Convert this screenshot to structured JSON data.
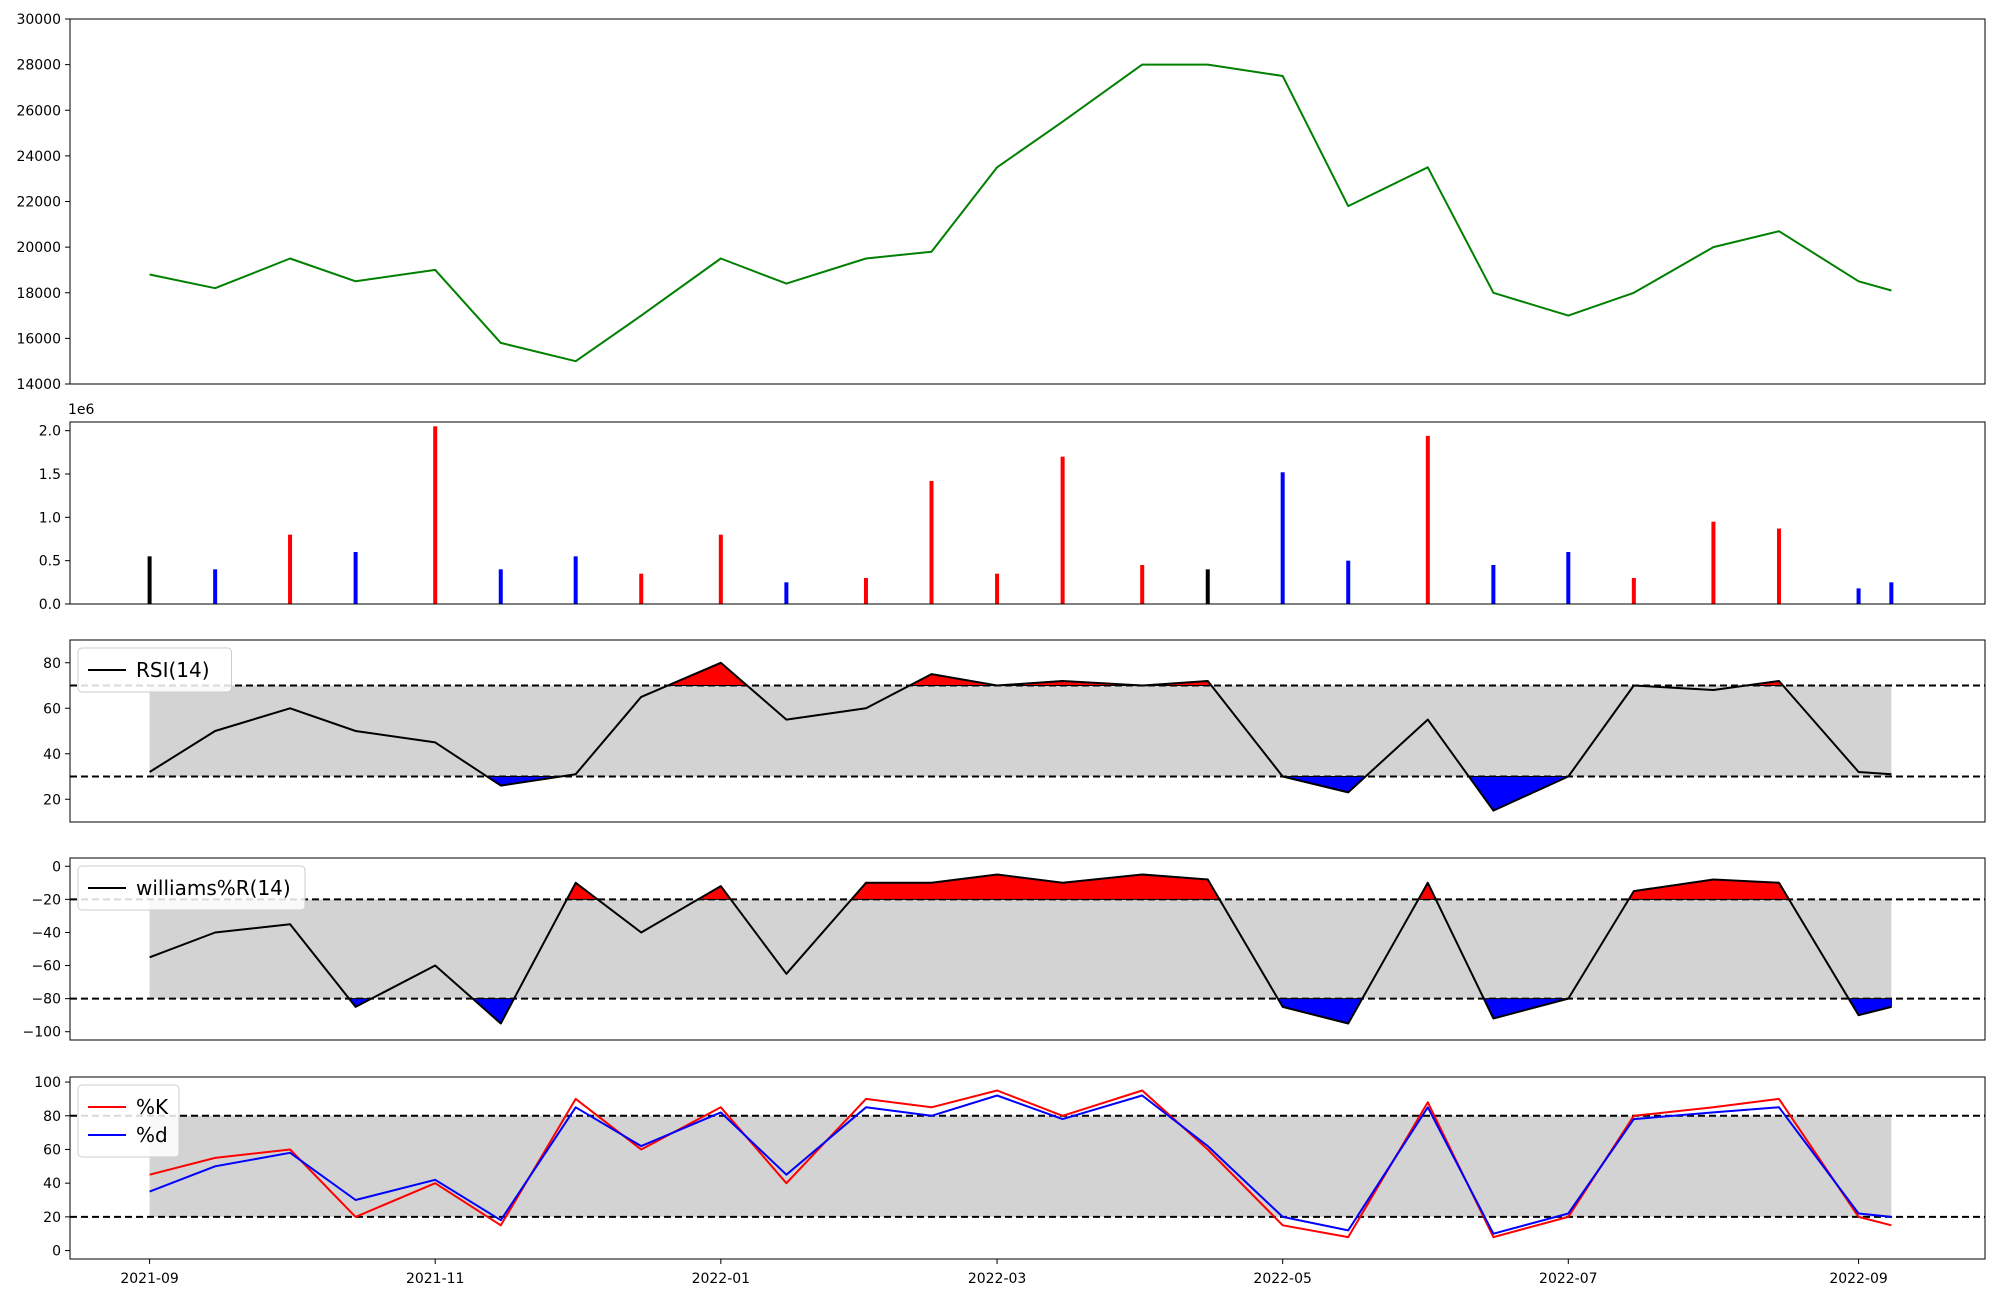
{
  "chart_data": [
    {
      "panel": "price",
      "type": "line",
      "ylim": [
        14000,
        30000
      ],
      "yticks": [
        14000,
        16000,
        18000,
        20000,
        22000,
        24000,
        26000,
        28000,
        30000
      ],
      "ytick_labels": [
        "14000",
        "16000",
        "18000",
        "20000",
        "22000",
        "24000",
        "26000",
        "28000",
        "30000"
      ],
      "color": "#008000",
      "x": [
        "2021-09-01",
        "2021-09-15",
        "2021-10-01",
        "2021-10-15",
        "2021-11-01",
        "2021-11-15",
        "2021-12-01",
        "2021-12-15",
        "2022-01-01",
        "2022-01-15",
        "2022-02-01",
        "2022-02-15",
        "2022-03-01",
        "2022-03-15",
        "2022-04-01",
        "2022-04-15",
        "2022-05-01",
        "2022-05-15",
        "2022-06-01",
        "2022-06-15",
        "2022-07-01",
        "2022-07-15",
        "2022-08-01",
        "2022-08-15",
        "2022-09-01",
        "2022-09-08"
      ],
      "values": [
        18800,
        18200,
        19500,
        18500,
        19000,
        15800,
        15000,
        17000,
        19500,
        18400,
        19500,
        19800,
        23500,
        25500,
        28000,
        28000,
        27500,
        21800,
        23500,
        18000,
        17000,
        18000,
        20000,
        20700,
        18500,
        18100
      ]
    },
    {
      "panel": "volume",
      "type": "bar",
      "scale_label": "1e6",
      "ylim": [
        0,
        2100000
      ],
      "yticks": [
        0,
        500000,
        1000000,
        1500000,
        2000000
      ],
      "ytick_labels": [
        "0.0",
        "0.5",
        "1.0",
        "1.5",
        "2.0"
      ],
      "up_color": "#ff0000",
      "down_color": "#0000ff",
      "flat_color": "#000000",
      "x": [
        "2021-09-01",
        "2021-09-15",
        "2021-10-01",
        "2021-10-15",
        "2021-11-01",
        "2021-11-15",
        "2021-12-01",
        "2021-12-15",
        "2022-01-01",
        "2022-01-15",
        "2022-02-01",
        "2022-02-15",
        "2022-03-01",
        "2022-03-15",
        "2022-04-01",
        "2022-04-15",
        "2022-05-01",
        "2022-05-15",
        "2022-06-01",
        "2022-06-15",
        "2022-07-01",
        "2022-07-15",
        "2022-08-01",
        "2022-08-15",
        "2022-09-01",
        "2022-09-08"
      ],
      "values": [
        550000,
        400000,
        800000,
        600000,
        2050000,
        400000,
        550000,
        350000,
        800000,
        250000,
        300000,
        1420000,
        350000,
        1700000,
        450000,
        400000,
        1520000,
        500000,
        1940000,
        450000,
        600000,
        300000,
        950000,
        870000,
        180000,
        250000
      ]
    },
    {
      "panel": "rsi",
      "type": "line",
      "legend": "RSI(14)",
      "ylim": [
        10,
        90
      ],
      "yticks": [
        20,
        40,
        60,
        80
      ],
      "ytick_labels": [
        "20",
        "40",
        "60",
        "80"
      ],
      "upper": 70,
      "lower": 30,
      "color": "#000000",
      "x": [
        "2021-09-01",
        "2021-09-15",
        "2021-10-01",
        "2021-10-15",
        "2021-11-01",
        "2021-11-15",
        "2021-12-01",
        "2021-12-15",
        "2022-01-01",
        "2022-01-15",
        "2022-02-01",
        "2022-02-15",
        "2022-03-01",
        "2022-03-15",
        "2022-04-01",
        "2022-04-15",
        "2022-05-01",
        "2022-05-15",
        "2022-06-01",
        "2022-06-15",
        "2022-07-01",
        "2022-07-15",
        "2022-08-01",
        "2022-08-15",
        "2022-09-01",
        "2022-09-08"
      ],
      "values": [
        32,
        50,
        60,
        50,
        45,
        26,
        31,
        65,
        80,
        55,
        60,
        75,
        70,
        72,
        70,
        72,
        30,
        23,
        55,
        15,
        30,
        70,
        68,
        72,
        32,
        31
      ]
    },
    {
      "panel": "williams",
      "type": "line",
      "legend": "williams%R(14)",
      "ylim": [
        -105,
        5
      ],
      "yticks": [
        -100,
        -80,
        -60,
        -40,
        -20,
        0
      ],
      "ytick_labels": [
        "−100",
        "−80",
        "−60",
        "−40",
        "−20",
        "0"
      ],
      "upper": -20,
      "lower": -80,
      "color": "#000000",
      "x": [
        "2021-09-01",
        "2021-09-15",
        "2021-10-01",
        "2021-10-15",
        "2021-11-01",
        "2021-11-15",
        "2021-12-01",
        "2021-12-15",
        "2022-01-01",
        "2022-01-15",
        "2022-02-01",
        "2022-02-15",
        "2022-03-01",
        "2022-03-15",
        "2022-04-01",
        "2022-04-15",
        "2022-05-01",
        "2022-05-15",
        "2022-06-01",
        "2022-06-15",
        "2022-07-01",
        "2022-07-15",
        "2022-08-01",
        "2022-08-15",
        "2022-09-01",
        "2022-09-08"
      ],
      "values": [
        -55,
        -40,
        -35,
        -85,
        -60,
        -95,
        -10,
        -40,
        -12,
        -65,
        -10,
        -10,
        -5,
        -10,
        -5,
        -8,
        -85,
        -95,
        -10,
        -92,
        -80,
        -15,
        -8,
        -10,
        -90,
        -85
      ]
    },
    {
      "panel": "stochastic",
      "type": "line",
      "ylim": [
        -5,
        103
      ],
      "yticks": [
        0,
        20,
        40,
        60,
        80,
        100
      ],
      "ytick_labels": [
        "0",
        "20",
        "40",
        "60",
        "80",
        "100"
      ],
      "upper": 80,
      "lower": 20,
      "x": [
        "2021-09-01",
        "2021-09-15",
        "2021-10-01",
        "2021-10-15",
        "2021-11-01",
        "2021-11-15",
        "2021-12-01",
        "2021-12-15",
        "2022-01-01",
        "2022-01-15",
        "2022-02-01",
        "2022-02-15",
        "2022-03-01",
        "2022-03-15",
        "2022-04-01",
        "2022-04-15",
        "2022-05-01",
        "2022-05-15",
        "2022-06-01",
        "2022-06-15",
        "2022-07-01",
        "2022-07-15",
        "2022-08-01",
        "2022-08-15",
        "2022-09-01",
        "2022-09-08"
      ],
      "series": [
        {
          "name": "%K",
          "color": "#ff0000",
          "values": [
            45,
            55,
            60,
            20,
            40,
            15,
            90,
            60,
            85,
            40,
            90,
            85,
            95,
            80,
            95,
            60,
            15,
            8,
            88,
            8,
            20,
            80,
            85,
            90,
            20,
            15
          ]
        },
        {
          "name": "%d",
          "color": "#0000ff",
          "values": [
            35,
            50,
            58,
            30,
            42,
            18,
            85,
            62,
            82,
            45,
            85,
            80,
            92,
            78,
            92,
            62,
            20,
            12,
            85,
            10,
            22,
            78,
            82,
            85,
            22,
            20
          ]
        }
      ]
    }
  ],
  "x_axis": {
    "min": "2021-08-15",
    "max": "2022-09-28",
    "ticks": [
      "2021-09-01",
      "2021-11-01",
      "2022-01-01",
      "2022-03-01",
      "2022-05-01",
      "2022-07-01",
      "2022-09-01"
    ],
    "tick_labels": [
      "2021-09",
      "2021-11",
      "2022-01",
      "2022-03",
      "2022-05",
      "2022-07",
      "2022-09"
    ]
  },
  "colors": {
    "band_fill": "#d3d3d3",
    "overbought_fill": "#ff0000",
    "oversold_fill": "#0000ff",
    "threshold_line": "#000000"
  }
}
